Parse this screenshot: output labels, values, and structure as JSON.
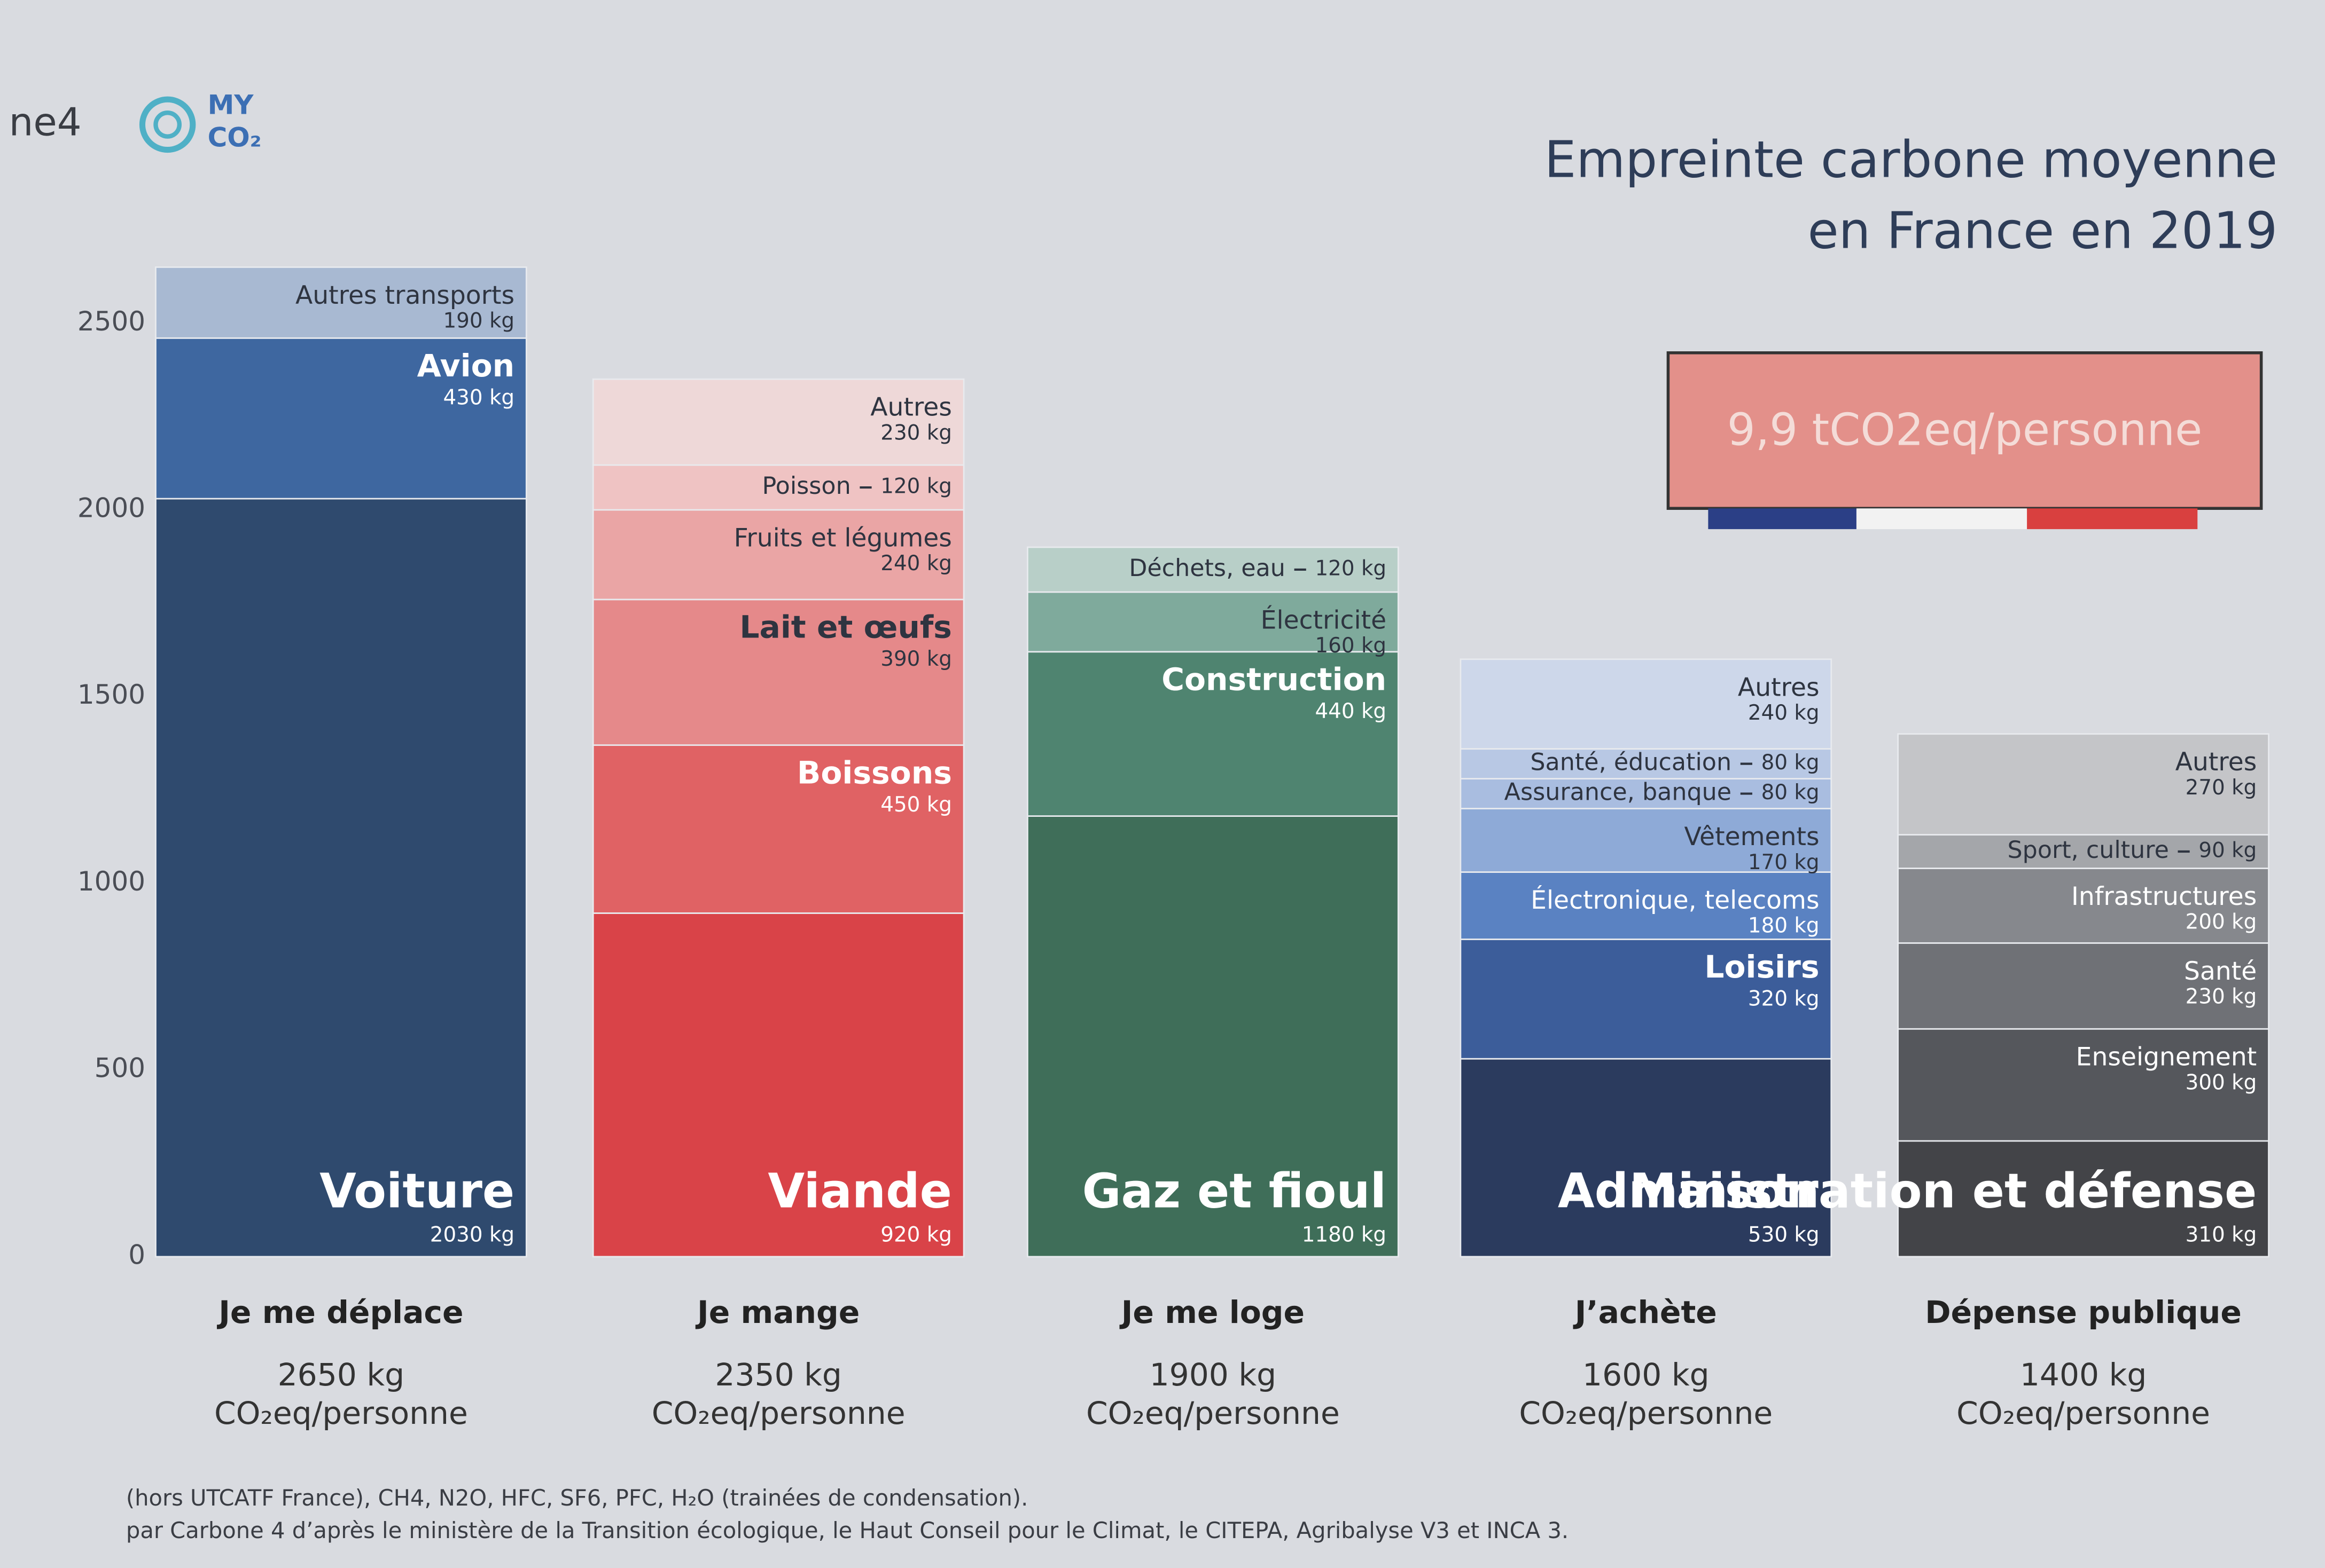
{
  "brand": {
    "left": "ne4",
    "logo_top": "MY",
    "logo_bottom": "CO₂"
  },
  "chart_data": {
    "type": "stacked_bar",
    "title_lines": [
      "Empreinte carbone moyenne",
      "en France en 2019"
    ],
    "badge": "9,9 tCO2eq/personne",
    "unit_label": "CO₂eq/personne",
    "ylim": [
      0,
      2500
    ],
    "yticks": [
      0,
      500,
      1000,
      1500,
      2000,
      2500
    ],
    "categories": [
      {
        "name": "Je me déplace",
        "total": "2650 kg",
        "segments": [
          "Voiture",
          "Avion",
          "Autres transports"
        ],
        "values": [
          2030,
          430,
          190
        ],
        "value_labels": [
          "2030 kg",
          "430 kg",
          "190 kg"
        ],
        "colors": [
          "#2f4a6e",
          "#3e67a0",
          "#a8b9d2"
        ]
      },
      {
        "name": "Je mange",
        "total": "2350 kg",
        "segments": [
          "Viande",
          "Boissons",
          "Lait et œufs",
          "Fruits et légumes",
          "Poisson",
          "Autres"
        ],
        "values": [
          920,
          450,
          390,
          240,
          120,
          230
        ],
        "value_labels": [
          "920 kg",
          "450 kg",
          "390 kg",
          "240 kg",
          "120 kg",
          "230 kg"
        ],
        "colors": [
          "#d94348",
          "#e06264",
          "#e5898a",
          "#eaa5a5",
          "#efc3c3",
          "#eed8d8"
        ]
      },
      {
        "name": "Je me loge",
        "total": "1900 kg",
        "segments": [
          "Gaz et fioul",
          "Construction",
          "Électricité",
          "Déchets, eau"
        ],
        "values": [
          1180,
          440,
          160,
          120
        ],
        "value_labels": [
          "1180 kg",
          "440 kg",
          "160 kg",
          "120 kg"
        ],
        "colors": [
          "#3f6e59",
          "#4f8470",
          "#7faa9c",
          "#b8cfc8"
        ]
      },
      {
        "name": "J’achète",
        "total": "1600 kg",
        "segments": [
          "Maison",
          "Loisirs",
          "Électronique, telecoms",
          "Vêtements",
          "Assurance, banque",
          "Santé, éducation",
          "Autres"
        ],
        "values": [
          530,
          320,
          180,
          170,
          80,
          80,
          240
        ],
        "value_labels": [
          "530 kg",
          "320 kg",
          "180 kg",
          "170 kg",
          "80 kg",
          "80 kg",
          "240 kg"
        ],
        "colors": [
          "#2b3b5e",
          "#3c5d9a",
          "#5a82c2",
          "#8eaad7",
          "#a9bde0",
          "#b8c8e4",
          "#cdd7ea"
        ]
      },
      {
        "name": "Dépense publique",
        "total": "1400 kg",
        "segments": [
          "Administration et défense",
          "Enseignement",
          "Santé",
          "Infrastructures",
          "Sport, culture",
          "Autres"
        ],
        "values": [
          310,
          300,
          230,
          200,
          90,
          270
        ],
        "value_labels": [
          "310 kg",
          "300 kg",
          "230 kg",
          "200 kg",
          "90 kg",
          "270 kg"
        ],
        "colors": [
          "#434448",
          "#55575c",
          "#6f7176",
          "#86888d",
          "#a4a6aa",
          "#c4c5c8"
        ]
      }
    ],
    "footnote_lines": [
      "(hors UTCATF France), CH4, N2O, HFC, SF6, PFC, H₂O (trainées de condensation).",
      "par Carbone 4 d’après le ministère de la Transition écologique, le Haut Conseil pour le Climat, le CITEPA, Agribalyse V3 et INCA 3."
    ]
  }
}
